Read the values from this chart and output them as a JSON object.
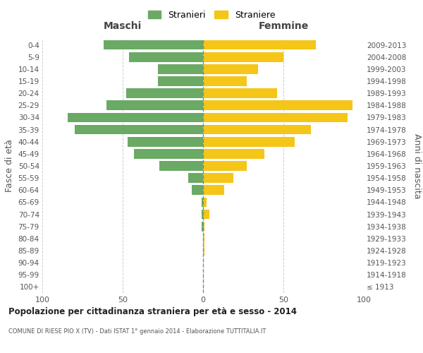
{
  "age_groups": [
    "100+",
    "95-99",
    "90-94",
    "85-89",
    "80-84",
    "75-79",
    "70-74",
    "65-69",
    "60-64",
    "55-59",
    "50-54",
    "45-49",
    "40-44",
    "35-39",
    "30-34",
    "25-29",
    "20-24",
    "15-19",
    "10-14",
    "5-9",
    "0-4"
  ],
  "birth_years": [
    "≤ 1913",
    "1914-1918",
    "1919-1923",
    "1924-1928",
    "1929-1933",
    "1934-1938",
    "1939-1943",
    "1944-1948",
    "1949-1953",
    "1954-1958",
    "1959-1963",
    "1964-1968",
    "1969-1973",
    "1974-1978",
    "1979-1983",
    "1984-1988",
    "1989-1993",
    "1994-1998",
    "1999-2003",
    "2004-2008",
    "2009-2013"
  ],
  "maschi": [
    0,
    0,
    0,
    0,
    0,
    1,
    1,
    1,
    7,
    9,
    27,
    43,
    47,
    80,
    84,
    60,
    48,
    28,
    28,
    46,
    62
  ],
  "femmine": [
    0,
    0,
    0,
    1,
    1,
    1,
    4,
    2,
    13,
    19,
    27,
    38,
    57,
    67,
    90,
    93,
    46,
    27,
    34,
    50,
    70
  ],
  "maschi_color": "#6aaa64",
  "femmine_color": "#f5c518",
  "center_line_color": "#888888",
  "grid_color": "#cccccc",
  "background_color": "#ffffff",
  "title": "Popolazione per cittadinanza straniera per età e sesso - 2014",
  "subtitle": "COMUNE DI RIESE PIO X (TV) - Dati ISTAT 1° gennaio 2014 - Elaborazione TUTTITALIA.IT",
  "ylabel_left": "Fasce di età",
  "ylabel_right": "Anni di nascita",
  "xlabel_left": "Maschi",
  "xlabel_right": "Femmine",
  "legend_maschi": "Stranieri",
  "legend_femmine": "Straniere",
  "xlim": 100,
  "bar_height": 0.8
}
